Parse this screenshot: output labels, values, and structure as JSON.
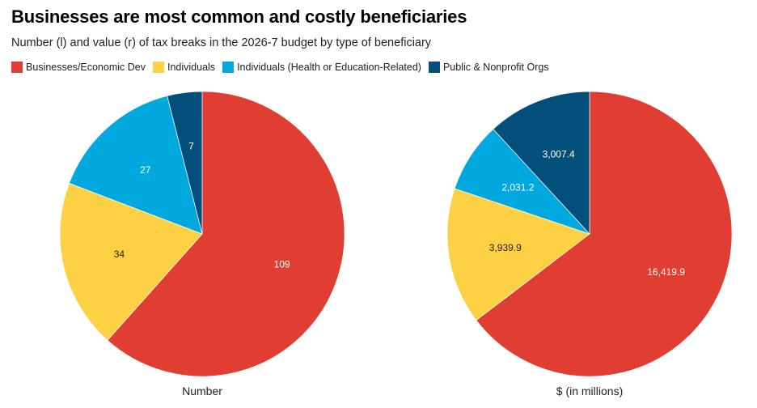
{
  "chart_data": [
    {
      "type": "pie",
      "title": "Businesses are most common and costly beneficiaries",
      "subtitle": "Number (l) and value (r) of tax breaks in the 2026-7 budget by type of beneficiary",
      "caption": "Number",
      "categories": [
        "Businesses/Economic Dev",
        "Individuals",
        "Individuals (Health or Education-Related)",
        "Public & Nonprofit Orgs"
      ],
      "values": [
        109,
        34,
        27,
        7
      ],
      "labels": [
        "109",
        "34",
        "27",
        "7"
      ],
      "order": "clockwise-from-top"
    },
    {
      "type": "pie",
      "title": "Businesses are most common and costly beneficiaries",
      "subtitle": "Number (l) and value (r) of tax breaks in the 2026-7 budget by type of beneficiary",
      "caption": "$ (in millions)",
      "categories": [
        "Businesses/Economic Dev",
        "Individuals",
        "Individuals (Health or Education-Related)",
        "Public & Nonprofit Orgs"
      ],
      "values": [
        16419.9,
        3939.9,
        2031.2,
        3007.4
      ],
      "labels": [
        "16,419.9",
        "3,939.9",
        "2,031.2",
        "3,007.4"
      ],
      "order": "clockwise-from-top"
    }
  ],
  "header": {
    "title": "Businesses are most common and costly beneficiaries",
    "subtitle": "Number (l) and value (r) of tax breaks in the 2026-7 budget by type of beneficiary"
  },
  "legend": [
    {
      "label": "Businesses/Economic Dev",
      "color": "#e03e32",
      "text_color": "#ffffff"
    },
    {
      "label": "Individuals",
      "color": "#fdd143",
      "text_color": "#222222"
    },
    {
      "label": "Individuals (Health or Education-Related)",
      "color": "#00a8e0",
      "text_color": "#ffffff"
    },
    {
      "label": "Public & Nonprofit Orgs",
      "color": "#034f7c",
      "text_color": "#ffffff"
    }
  ]
}
